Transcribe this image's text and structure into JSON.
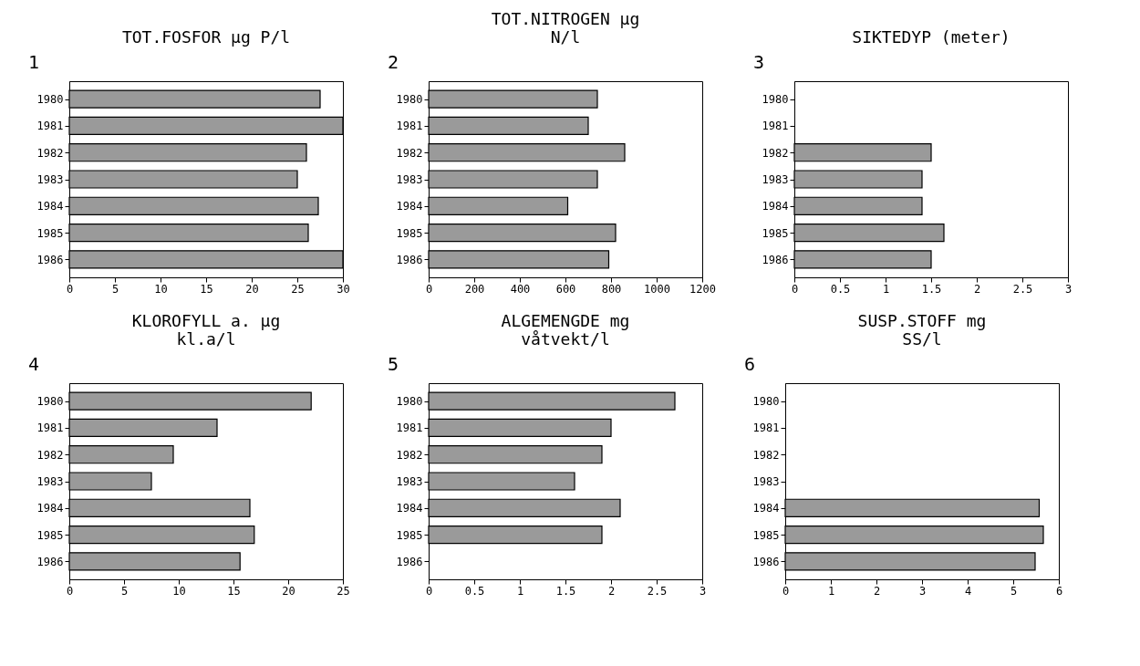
{
  "chart_data": [
    {
      "type": "bar",
      "orientation": "horizontal",
      "title": "TOT.FOSFOR  µg P/l",
      "annotations": [
        "1"
      ],
      "categories": [
        "1980",
        "1981",
        "1982",
        "1983",
        "1984",
        "1985",
        "1986"
      ],
      "values": [
        27.5,
        30,
        26,
        25,
        27.3,
        26.2,
        30
      ],
      "color": "#9a9a9a",
      "xlim": [
        0,
        30
      ],
      "xticks": [
        0,
        5,
        10,
        15,
        20,
        25,
        30
      ],
      "grid": false
    },
    {
      "type": "bar",
      "orientation": "horizontal",
      "title": "TOT.NITROGEN  µg\nN/l",
      "annotations": [
        "2"
      ],
      "categories": [
        "1980",
        "1981",
        "1982",
        "1983",
        "1984",
        "1985",
        "1986"
      ],
      "values": [
        740,
        700,
        860,
        740,
        610,
        820,
        790
      ],
      "color": "#9a9a9a",
      "xlim": [
        0,
        1200
      ],
      "xticks": [
        0,
        200,
        400,
        600,
        800,
        1000,
        1200
      ],
      "grid": false
    },
    {
      "type": "bar",
      "orientation": "horizontal",
      "title": "SIKTEDYP  (meter)",
      "annotations": [
        "3"
      ],
      "categories": [
        "1980",
        "1981",
        "1982",
        "1983",
        "1984",
        "1985",
        "1986"
      ],
      "values": [
        null,
        null,
        1.5,
        1.4,
        1.4,
        1.64,
        1.5
      ],
      "color": "#9a9a9a",
      "xlim": [
        0,
        3
      ],
      "xticks": [
        0,
        0.5,
        1,
        1.5,
        2,
        2.5,
        3
      ],
      "grid": false
    },
    {
      "type": "bar",
      "orientation": "horizontal",
      "title": "KLOROFYLL a.  µg\nkl.a/l",
      "annotations": [
        "4"
      ],
      "categories": [
        "1980",
        "1981",
        "1982",
        "1983",
        "1984",
        "1985",
        "1986"
      ],
      "values": [
        22.1,
        13.5,
        9.5,
        7.5,
        16.5,
        16.9,
        15.6
      ],
      "color": "#9a9a9a",
      "xlim": [
        0,
        25
      ],
      "xticks": [
        0,
        5,
        10,
        15,
        20,
        25
      ],
      "grid": false
    },
    {
      "type": "bar",
      "orientation": "horizontal",
      "title": "ALGEMENGDE  mg\nvåtvekt/l",
      "annotations": [
        "5"
      ],
      "categories": [
        "1980",
        "1981",
        "1982",
        "1983",
        "1984",
        "1985",
        "1986"
      ],
      "values": [
        2.7,
        2.0,
        1.9,
        1.6,
        2.1,
        1.9,
        null
      ],
      "color": "#9a9a9a",
      "xlim": [
        0,
        3
      ],
      "xticks": [
        0,
        0.5,
        1,
        1.5,
        2,
        2.5,
        3
      ],
      "grid": false
    },
    {
      "type": "bar",
      "orientation": "horizontal",
      "title": "SUSP.STOFF  mg\nSS/l",
      "annotations": [
        "6"
      ],
      "categories": [
        "1980",
        "1981",
        "1982",
        "1983",
        "1984",
        "1985",
        "1986"
      ],
      "values": [
        null,
        null,
        null,
        null,
        5.57,
        5.66,
        5.48
      ],
      "color": "#9a9a9a",
      "xlim": [
        0,
        6
      ],
      "xticks": [
        0,
        1,
        2,
        3,
        4,
        5,
        6
      ],
      "grid": false
    }
  ]
}
